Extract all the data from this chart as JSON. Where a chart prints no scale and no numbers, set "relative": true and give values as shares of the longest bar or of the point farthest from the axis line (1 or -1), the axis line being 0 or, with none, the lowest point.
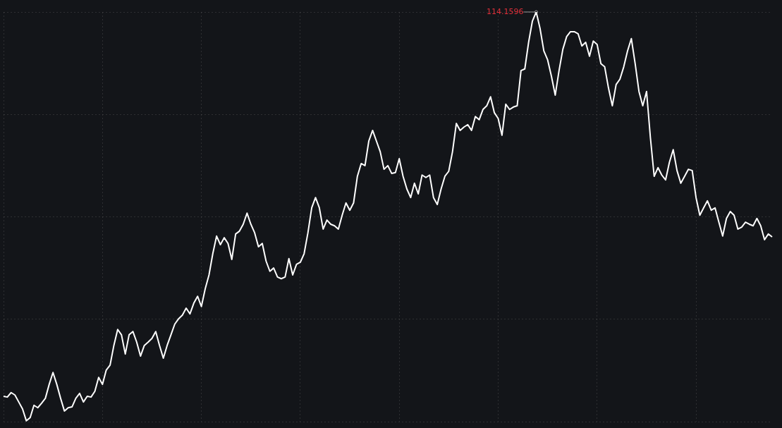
{
  "chart_data": {
    "type": "line",
    "relative": true,
    "grid": true,
    "marker": "none",
    "line_style": "solid",
    "categories": [
      null,
      null,
      null,
      null,
      null,
      null,
      null,
      null,
      null,
      null,
      null,
      null,
      null,
      null,
      null,
      null,
      null,
      null,
      null,
      null,
      null,
      null,
      null,
      null,
      null,
      null,
      null,
      null,
      null,
      null,
      null,
      null,
      null,
      null,
      null,
      null,
      null,
      null,
      null,
      null,
      null,
      null,
      null,
      null,
      null,
      null,
      null,
      null,
      null,
      null,
      null,
      null,
      null,
      null,
      null,
      null,
      null,
      null,
      null,
      null,
      null,
      null,
      null,
      null,
      null,
      null,
      null,
      null,
      null,
      null,
      null,
      null,
      null,
      null,
      null,
      null,
      null,
      null,
      null,
      null,
      null,
      null,
      null,
      null,
      null,
      null,
      null,
      null,
      null,
      null,
      null,
      null,
      null,
      null,
      null,
      null,
      null,
      null,
      null,
      null,
      null,
      null,
      null,
      null,
      null,
      null,
      null,
      null,
      null,
      null,
      null,
      null,
      null,
      null,
      null,
      null,
      null,
      null,
      null,
      null,
      null,
      null,
      null,
      null,
      null,
      null,
      null,
      null,
      null,
      null,
      null,
      null,
      null,
      null,
      null,
      null,
      null,
      null,
      null,
      null,
      null,
      null,
      null,
      null,
      null,
      null,
      null,
      null,
      null,
      null,
      null,
      null,
      null,
      null,
      null,
      null,
      null,
      null,
      null,
      null,
      null,
      null,
      null,
      null,
      null,
      null,
      null,
      null,
      null,
      null,
      null,
      null,
      null,
      null,
      null,
      null,
      null,
      null,
      null,
      null,
      null,
      null,
      null,
      null,
      null,
      null,
      null,
      null,
      null,
      null,
      null,
      null,
      null,
      null,
      null,
      null,
      null,
      null,
      null,
      null,
      null,
      null,
      null
    ],
    "series": [
      {
        "color": "#ffffff",
        "values": [
          0.062,
          0.06,
          0.071,
          0.065,
          0.048,
          0.031,
          0.002,
          0.01,
          0.04,
          0.034,
          0.045,
          0.057,
          0.091,
          0.12,
          0.091,
          0.057,
          0.026,
          0.034,
          0.036,
          0.057,
          0.069,
          0.048,
          0.062,
          0.06,
          0.074,
          0.108,
          0.091,
          0.126,
          0.138,
          0.186,
          0.225,
          0.212,
          0.165,
          0.212,
          0.22,
          0.194,
          0.16,
          0.186,
          0.194,
          0.203,
          0.22,
          0.186,
          0.155,
          0.186,
          0.212,
          0.238,
          0.251,
          0.26,
          0.277,
          0.263,
          0.289,
          0.306,
          0.281,
          0.324,
          0.358,
          0.41,
          0.453,
          0.432,
          0.449,
          0.435,
          0.396,
          0.458,
          0.465,
          0.482,
          0.509,
          0.482,
          0.461,
          0.427,
          0.435,
          0.392,
          0.367,
          0.375,
          0.353,
          0.349,
          0.353,
          0.398,
          0.358,
          0.384,
          0.389,
          0.41,
          0.461,
          0.522,
          0.547,
          0.522,
          0.47,
          0.492,
          0.482,
          0.478,
          0.47,
          0.504,
          0.534,
          0.516,
          0.534,
          0.599,
          0.63,
          0.625,
          0.685,
          0.711,
          0.685,
          0.659,
          0.616,
          0.625,
          0.606,
          0.608,
          0.642,
          0.599,
          0.568,
          0.547,
          0.582,
          0.556,
          0.602,
          0.596,
          0.602,
          0.547,
          0.53,
          0.568,
          0.599,
          0.611,
          0.659,
          0.728,
          0.711,
          0.719,
          0.725,
          0.711,
          0.745,
          0.737,
          0.762,
          0.771,
          0.793,
          0.754,
          0.74,
          0.699,
          0.775,
          0.762,
          0.768,
          0.771,
          0.857,
          0.861,
          0.926,
          0.978,
          1,
          0.96,
          0.905,
          0.883,
          0.843,
          0.797,
          0.857,
          0.909,
          0.94,
          0.952,
          0.952,
          0.947,
          0.917,
          0.926,
          0.892,
          0.929,
          0.921,
          0.874,
          0.866,
          0.814,
          0.771,
          0.823,
          0.836,
          0.866,
          0.905,
          0.935,
          0.874,
          0.806,
          0.771,
          0.806,
          0.694,
          0.599,
          0.62,
          0.602,
          0.59,
          0.633,
          0.664,
          0.613,
          0.582,
          0.599,
          0.616,
          0.613,
          0.547,
          0.504,
          0.522,
          0.539,
          0.516,
          0.522,
          0.487,
          0.453,
          0.496,
          0.513,
          0.504,
          0.47,
          0.475,
          0.487,
          0.482,
          0.478,
          0.496,
          0.478,
          0.444,
          0.458,
          0.451
        ]
      }
    ],
    "annotations": [
      "114.1596"
    ]
  }
}
